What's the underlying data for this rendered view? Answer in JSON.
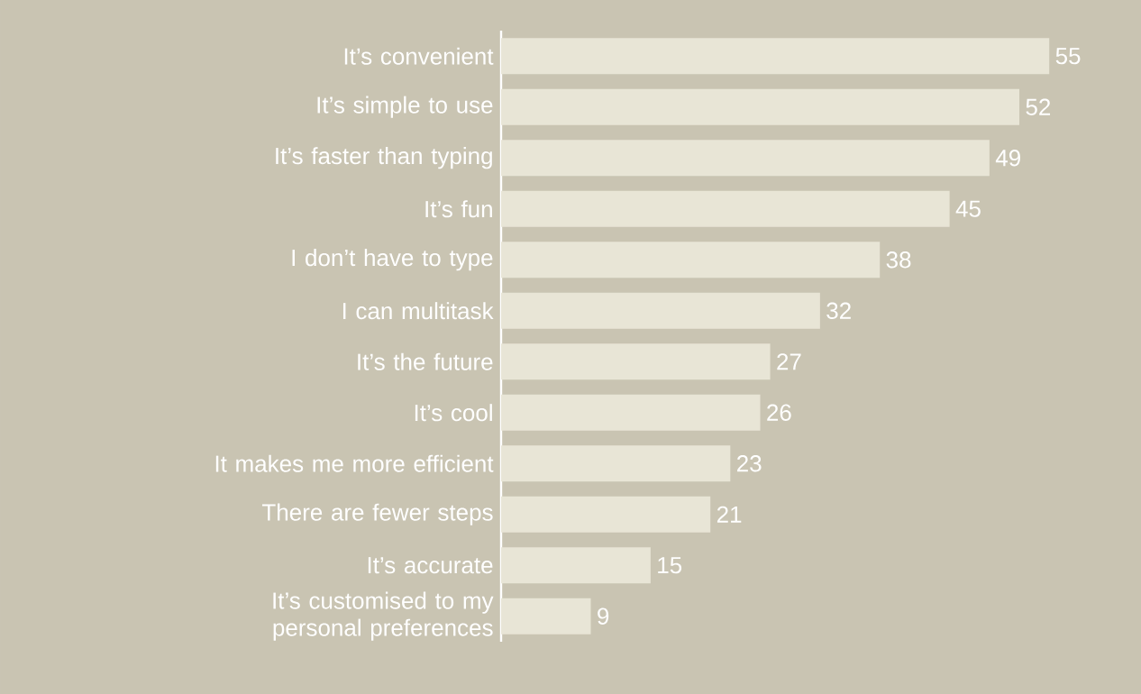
{
  "chart_data": {
    "type": "bar",
    "orientation": "horizontal",
    "categories": [
      "It’s convenient",
      "It’s simple to use",
      "It’s faster than typing",
      "It’s fun",
      "I don’t have to type",
      "I can multitask",
      "It’s the future",
      "It’s cool",
      "It makes me more efficient",
      "There are fewer steps",
      "It’s accurate",
      "It’s customised to my personal preferences"
    ],
    "values": [
      55,
      52,
      49,
      45,
      38,
      32,
      27,
      26,
      23,
      21,
      15,
      9
    ],
    "color": "#e8e5d6",
    "data_labels": true
  }
}
